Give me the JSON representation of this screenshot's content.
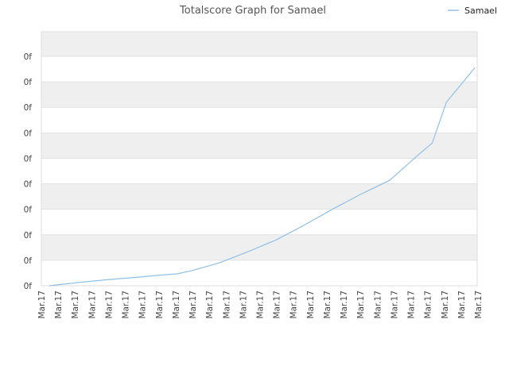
{
  "chart_data": {
    "type": "line",
    "title": "Totalscore Graph for Samael",
    "xlabel": "",
    "ylabel": "",
    "legend": {
      "position": "top-right"
    },
    "grid": true,
    "y_tick_labels": [
      "0f",
      "0f",
      "0f",
      "0f",
      "0f",
      "0f",
      "0f",
      "0f",
      "0f",
      "0f"
    ],
    "categories": [
      "Mar.17",
      "Mar.17",
      "Mar.17",
      "Mar.17",
      "Mar.17",
      "Mar.17",
      "Mar.17",
      "Mar.17",
      "Mar.17",
      "Mar.17",
      "Mar.17",
      "Mar.17",
      "Mar.17",
      "Mar.17",
      "Mar.17",
      "Mar.17",
      "Mar.17",
      "Mar.17",
      "Mar.17",
      "Mar.17",
      "Mar.17",
      "Mar.17",
      "Mar.17",
      "Mar.17",
      "Mar.17",
      "Mar.17",
      "Mar.17"
    ],
    "ylim": [
      0,
      10
    ],
    "series": [
      {
        "name": "Samael",
        "color": "#90c0e8",
        "points": [
          [
            0,
            0.0
          ],
          [
            2,
            0.14
          ],
          [
            4,
            0.26
          ],
          [
            6,
            0.36
          ],
          [
            8,
            0.47
          ],
          [
            9,
            0.52
          ],
          [
            10,
            0.65
          ],
          [
            12,
            1.0
          ],
          [
            14,
            1.48
          ],
          [
            16,
            2.0
          ],
          [
            18,
            2.65
          ],
          [
            20,
            3.35
          ],
          [
            22,
            4.0
          ],
          [
            24,
            4.6
          ],
          [
            26,
            5.7
          ],
          [
            27,
            6.22
          ],
          [
            28,
            8.0
          ],
          [
            30,
            9.5
          ]
        ],
        "x_max": 30
      }
    ]
  }
}
